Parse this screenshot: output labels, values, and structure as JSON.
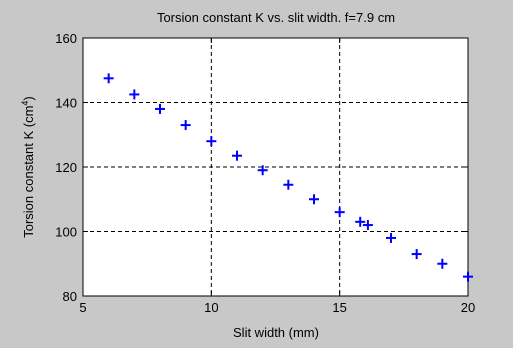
{
  "chart_data": {
    "type": "scatter",
    "title": "Torsion constant K vs. slit width. f=7.9 cm",
    "xlabel": "Slit width (mm)",
    "ylabel_main": "Torsion constant K (cm",
    "ylabel_sup": "4",
    "ylabel_close": ")",
    "xlim": [
      5,
      20
    ],
    "ylim": [
      80,
      160
    ],
    "xticks": [
      5,
      10,
      15,
      20
    ],
    "yticks": [
      80,
      100,
      120,
      140,
      160
    ],
    "grid": true,
    "marker": "plus",
    "marker_color": "#0000ff",
    "points": [
      {
        "x": 6,
        "y": 147.5
      },
      {
        "x": 7,
        "y": 142.5
      },
      {
        "x": 8,
        "y": 138
      },
      {
        "x": 9,
        "y": 133
      },
      {
        "x": 10,
        "y": 128
      },
      {
        "x": 11,
        "y": 123.5
      },
      {
        "x": 12,
        "y": 119
      },
      {
        "x": 13,
        "y": 114.5
      },
      {
        "x": 14,
        "y": 110
      },
      {
        "x": 15,
        "y": 106
      },
      {
        "x": 15.8,
        "y": 103
      },
      {
        "x": 16.1,
        "y": 102
      },
      {
        "x": 17,
        "y": 98
      },
      {
        "x": 18,
        "y": 93
      },
      {
        "x": 19,
        "y": 90
      },
      {
        "x": 20,
        "y": 86
      }
    ]
  }
}
